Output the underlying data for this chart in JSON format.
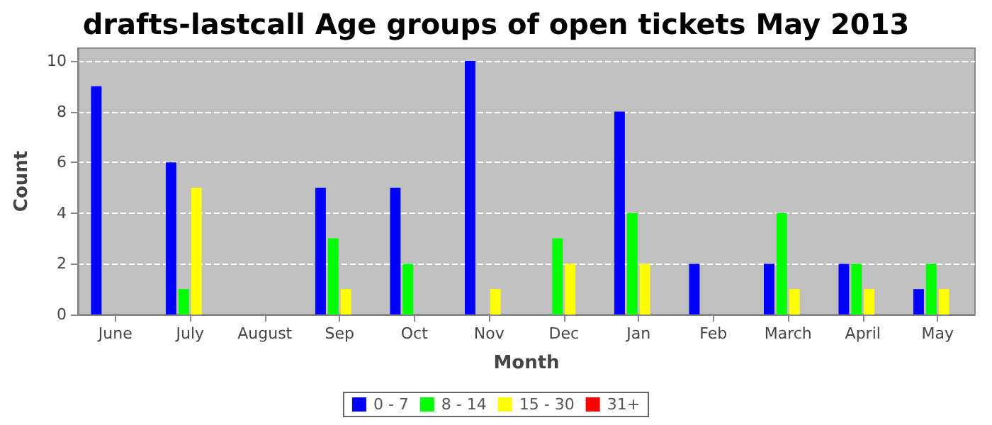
{
  "chart_data": {
    "type": "bar",
    "title": "drafts-lastcall Age groups of open tickets May 2013",
    "xlabel": "Month",
    "ylabel": "Count",
    "categories": [
      "June",
      "July",
      "August",
      "Sep",
      "Oct",
      "Nov",
      "Dec",
      "Jan",
      "Feb",
      "March",
      "April",
      "May"
    ],
    "series": [
      {
        "name": "0 - 7",
        "color": "#0000ff",
        "values": [
          9,
          6,
          0,
          5,
          5,
          10,
          0,
          8,
          2,
          2,
          2,
          1
        ]
      },
      {
        "name": "8 - 14",
        "color": "#00ff00",
        "values": [
          0,
          1,
          0,
          3,
          2,
          0,
          3,
          4,
          0,
          4,
          2,
          2
        ]
      },
      {
        "name": "15 - 30",
        "color": "#ffff00",
        "values": [
          0,
          5,
          0,
          1,
          0,
          1,
          2,
          2,
          0,
          1,
          1,
          1
        ]
      },
      {
        "name": "31+",
        "color": "#ff0000",
        "values": [
          0,
          0,
          0,
          0,
          0,
          0,
          0,
          0,
          0,
          0,
          0,
          0
        ]
      }
    ],
    "ylim": [
      0,
      10.5
    ],
    "yticks": [
      0,
      2,
      4,
      6,
      8,
      10
    ],
    "grid": "y",
    "legend": "bottom"
  }
}
